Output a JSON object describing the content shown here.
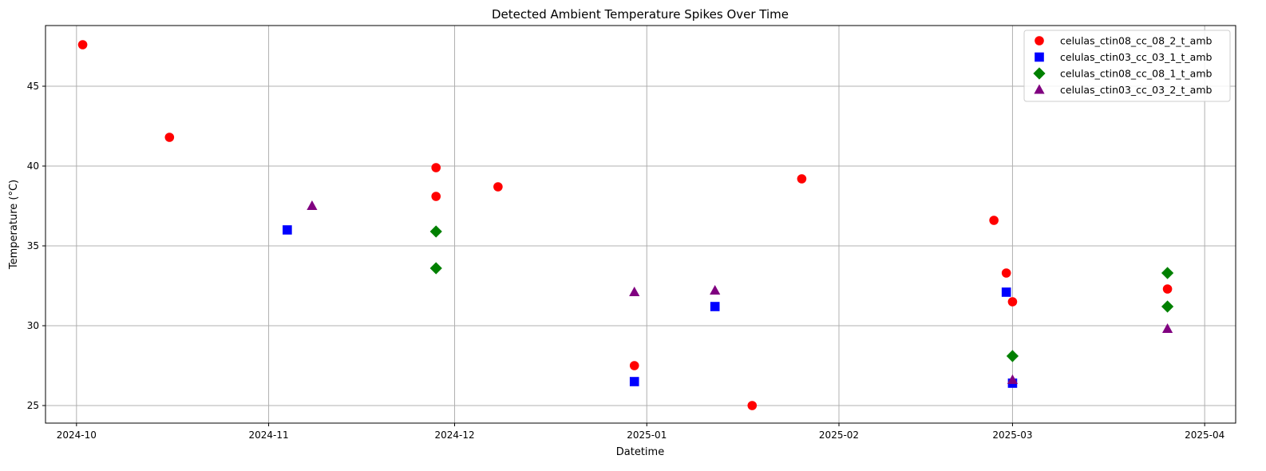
{
  "chart_data": {
    "type": "scatter",
    "title": "Detected Ambient Temperature Spikes Over Time",
    "xlabel": "Datetime",
    "ylabel": "Temperature (°C)",
    "x_is_date": true,
    "xlim": [
      "2024-09-26",
      "2025-04-06"
    ],
    "ylim": [
      23.9,
      48.8
    ],
    "x_ticks": [
      "2024-10-01",
      "2024-11-01",
      "2024-12-01",
      "2025-01-01",
      "2025-02-01",
      "2025-03-01",
      "2025-04-01"
    ],
    "x_tick_labels": [
      "2024-10",
      "2024-11",
      "2024-12",
      "2025-01",
      "2025-02",
      "2025-03",
      "2025-04"
    ],
    "y_ticks": [
      25,
      30,
      35,
      40,
      45
    ],
    "grid": true,
    "legend_position": "top-right",
    "series": [
      {
        "name": "celulas_ctin08_cc_08_2_t_amb",
        "marker": "circle",
        "color": "#ff0000",
        "points": [
          [
            "2024-10-02",
            47.6
          ],
          [
            "2024-10-16",
            41.8
          ],
          [
            "2024-11-28",
            39.9
          ],
          [
            "2024-11-28",
            38.1
          ],
          [
            "2024-12-08",
            38.7
          ],
          [
            "2024-12-30",
            27.5
          ],
          [
            "2025-01-18",
            25.0
          ],
          [
            "2025-01-26",
            39.2
          ],
          [
            "2025-02-26",
            36.6
          ],
          [
            "2025-02-28",
            33.3
          ],
          [
            "2025-03-01",
            31.5
          ],
          [
            "2025-03-26",
            32.3
          ]
        ]
      },
      {
        "name": "celulas_ctin03_cc_03_1_t_amb",
        "marker": "square",
        "color": "#0000ff",
        "points": [
          [
            "2024-11-04",
            36.0
          ],
          [
            "2024-12-30",
            26.5
          ],
          [
            "2025-01-12",
            31.2
          ],
          [
            "2025-02-28",
            32.1
          ],
          [
            "2025-03-01",
            26.4
          ]
        ]
      },
      {
        "name": "celulas_ctin08_cc_08_1_t_amb",
        "marker": "diamond",
        "color": "#008000",
        "points": [
          [
            "2024-11-28",
            35.9
          ],
          [
            "2024-11-28",
            33.6
          ],
          [
            "2025-03-01",
            28.1
          ],
          [
            "2025-03-26",
            33.3
          ],
          [
            "2025-03-26",
            31.2
          ]
        ]
      },
      {
        "name": "celulas_ctin03_cc_03_2_t_amb",
        "marker": "triangle",
        "color": "#800080",
        "points": [
          [
            "2024-11-08",
            37.5
          ],
          [
            "2024-12-30",
            32.1
          ],
          [
            "2025-01-12",
            32.2
          ],
          [
            "2025-03-01",
            26.6
          ],
          [
            "2025-03-26",
            29.8
          ]
        ]
      }
    ]
  }
}
